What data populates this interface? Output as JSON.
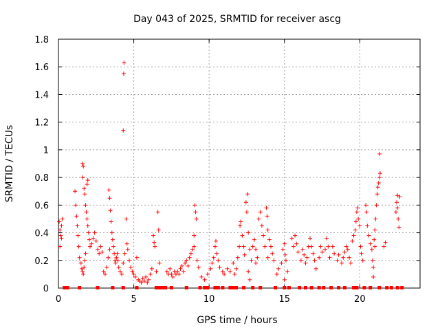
{
  "chart_data": {
    "type": "scatter",
    "title": "Day 043 of 2025, SRMTID for receiver ascg",
    "xlabel": "GPS time / hours",
    "ylabel": "SRMTID / TECUs",
    "xlim": [
      0,
      24
    ],
    "ylim": [
      0,
      1.8
    ],
    "xticks": [
      0,
      5,
      10,
      15,
      20
    ],
    "xtick_labels": [
      "0",
      "5",
      "10",
      "15",
      "20"
    ],
    "yticks": [
      0,
      0.2,
      0.4,
      0.6,
      0.8,
      1.0,
      1.2,
      1.4,
      1.6,
      1.8
    ],
    "ytick_labels": [
      "0",
      "0.2",
      "0.4",
      "0.6",
      "0.8",
      "1",
      "1.2",
      "1.4",
      "1.6",
      "1.8"
    ],
    "grid": true,
    "series": [
      {
        "name": "SRMTID",
        "marker": "plus",
        "color": "#ff0000",
        "points": [
          [
            0.05,
            0.48
          ],
          [
            0.1,
            0.42
          ],
          [
            0.15,
            0.38
          ],
          [
            0.2,
            0.45
          ],
          [
            0.25,
            0.5
          ],
          [
            0.1,
            0.3
          ],
          [
            0.2,
            0.36
          ],
          [
            1.1,
            0.7
          ],
          [
            1.15,
            0.6
          ],
          [
            1.2,
            0.52
          ],
          [
            1.25,
            0.45
          ],
          [
            1.3,
            0.38
          ],
          [
            1.35,
            0.3
          ],
          [
            1.4,
            0.22
          ],
          [
            1.5,
            0.18
          ],
          [
            1.55,
            0.14
          ],
          [
            1.6,
            0.12
          ],
          [
            1.65,
            0.1
          ],
          [
            1.7,
            0.15
          ],
          [
            1.75,
            0.2
          ],
          [
            1.8,
            0.25
          ],
          [
            1.6,
            0.9
          ],
          [
            1.65,
            0.88
          ],
          [
            1.62,
            0.8
          ],
          [
            1.7,
            0.72
          ],
          [
            1.75,
            0.68
          ],
          [
            1.8,
            0.6
          ],
          [
            1.85,
            0.55
          ],
          [
            1.9,
            0.5
          ],
          [
            1.95,
            0.45
          ],
          [
            2.0,
            0.4
          ],
          [
            2.05,
            0.35
          ],
          [
            2.1,
            0.3
          ],
          [
            1.95,
            0.78
          ],
          [
            1.9,
            0.75
          ],
          [
            2.2,
            0.32
          ],
          [
            2.3,
            0.36
          ],
          [
            2.4,
            0.4
          ],
          [
            2.5,
            0.34
          ],
          [
            2.6,
            0.28
          ],
          [
            2.7,
            0.25
          ],
          [
            2.8,
            0.3
          ],
          [
            2.9,
            0.26
          ],
          [
            3.0,
            0.12
          ],
          [
            3.1,
            0.1
          ],
          [
            3.2,
            0.15
          ],
          [
            3.3,
            0.22
          ],
          [
            3.4,
            0.28
          ],
          [
            3.35,
            0.71
          ],
          [
            3.4,
            0.65
          ],
          [
            3.45,
            0.56
          ],
          [
            3.5,
            0.48
          ],
          [
            3.55,
            0.4
          ],
          [
            3.6,
            0.35
          ],
          [
            3.65,
            0.3
          ],
          [
            3.7,
            0.25
          ],
          [
            3.75,
            0.2
          ],
          [
            3.8,
            0.18
          ],
          [
            3.85,
            0.22
          ],
          [
            3.9,
            0.25
          ],
          [
            3.95,
            0.2
          ],
          [
            4.0,
            0.15
          ],
          [
            4.1,
            0.12
          ],
          [
            4.2,
            0.1
          ],
          [
            4.3,
            0.18
          ],
          [
            4.35,
            1.63
          ],
          [
            4.33,
            1.55
          ],
          [
            4.3,
            1.14
          ],
          [
            4.4,
            0.25
          ],
          [
            4.5,
            0.5
          ],
          [
            4.55,
            0.32
          ],
          [
            4.6,
            0.28
          ],
          [
            4.7,
            0.2
          ],
          [
            4.8,
            0.15
          ],
          [
            4.9,
            0.12
          ],
          [
            5.0,
            0.1
          ],
          [
            5.1,
            0.08
          ],
          [
            5.2,
            0.22
          ],
          [
            5.3,
            0.06
          ],
          [
            5.4,
            0.05
          ],
          [
            5.5,
            0.04
          ],
          [
            5.6,
            0.07
          ],
          [
            5.7,
            0.05
          ],
          [
            5.8,
            0.08
          ],
          [
            5.9,
            0.04
          ],
          [
            6.0,
            0.06
          ],
          [
            6.1,
            0.1
          ],
          [
            6.2,
            0.14
          ],
          [
            6.3,
            0.38
          ],
          [
            6.35,
            0.33
          ],
          [
            6.4,
            0.3
          ],
          [
            6.5,
            0.12
          ],
          [
            6.6,
            0.55
          ],
          [
            6.65,
            0.42
          ],
          [
            6.7,
            0.18
          ],
          [
            7.2,
            0.12
          ],
          [
            7.3,
            0.1
          ],
          [
            7.4,
            0.14
          ],
          [
            7.5,
            0.1
          ],
          [
            7.6,
            0.08
          ],
          [
            7.7,
            0.12
          ],
          [
            7.8,
            0.1
          ],
          [
            7.9,
            0.12
          ],
          [
            8.0,
            0.1
          ],
          [
            8.1,
            0.14
          ],
          [
            8.2,
            0.16
          ],
          [
            8.3,
            0.12
          ],
          [
            8.4,
            0.18
          ],
          [
            8.5,
            0.2
          ],
          [
            8.6,
            0.16
          ],
          [
            8.7,
            0.22
          ],
          [
            8.8,
            0.25
          ],
          [
            8.9,
            0.28
          ],
          [
            9.0,
            0.3
          ],
          [
            9.05,
            0.6
          ],
          [
            9.1,
            0.55
          ],
          [
            9.15,
            0.5
          ],
          [
            9.0,
            0.38
          ],
          [
            9.2,
            0.2
          ],
          [
            9.3,
            0.15
          ],
          [
            9.5,
            0.08
          ],
          [
            9.7,
            0.06
          ],
          [
            9.9,
            0.1
          ],
          [
            10.1,
            0.14
          ],
          [
            10.2,
            0.18
          ],
          [
            10.3,
            0.22
          ],
          [
            10.4,
            0.3
          ],
          [
            10.45,
            0.34
          ],
          [
            10.5,
            0.25
          ],
          [
            10.6,
            0.2
          ],
          [
            10.7,
            0.15
          ],
          [
            10.9,
            0.12
          ],
          [
            11.0,
            0.1
          ],
          [
            11.2,
            0.14
          ],
          [
            11.4,
            0.12
          ],
          [
            11.6,
            0.18
          ],
          [
            11.7,
            0.1
          ],
          [
            11.8,
            0.14
          ],
          [
            11.9,
            0.22
          ],
          [
            12.0,
            0.3
          ],
          [
            12.05,
            0.45
          ],
          [
            12.1,
            0.48
          ],
          [
            12.2,
            0.38
          ],
          [
            12.3,
            0.3
          ],
          [
            12.35,
            0.24
          ],
          [
            12.45,
            0.62
          ],
          [
            12.5,
            0.55
          ],
          [
            12.55,
            0.68
          ],
          [
            12.6,
            0.4
          ],
          [
            12.7,
            0.28
          ],
          [
            12.8,
            0.2
          ],
          [
            12.9,
            0.3
          ],
          [
            13.0,
            0.35
          ],
          [
            13.1,
            0.28
          ],
          [
            13.2,
            0.22
          ],
          [
            13.3,
            0.5
          ],
          [
            13.4,
            0.55
          ],
          [
            13.5,
            0.45
          ],
          [
            13.6,
            0.38
          ],
          [
            13.7,
            0.3
          ],
          [
            13.8,
            0.58
          ],
          [
            13.85,
            0.52
          ],
          [
            13.9,
            0.42
          ],
          [
            14.0,
            0.35
          ],
          [
            14.1,
            0.3
          ],
          [
            14.2,
            0.25
          ],
          [
            13.9,
            0.22
          ],
          [
            12.6,
            0.12
          ],
          [
            12.7,
            0.06
          ],
          [
            13.1,
            0.18
          ],
          [
            14.3,
            0.2
          ],
          [
            14.5,
            0.1
          ],
          [
            14.6,
            0.14
          ],
          [
            14.8,
            0.18
          ],
          [
            14.9,
            0.28
          ],
          [
            15.0,
            0.32
          ],
          [
            15.05,
            0.24
          ],
          [
            15.1,
            0.2
          ],
          [
            15.2,
            0.12
          ],
          [
            15.0,
            0.06
          ],
          [
            15.5,
            0.36
          ],
          [
            15.6,
            0.3
          ],
          [
            15.7,
            0.38
          ],
          [
            15.8,
            0.32
          ],
          [
            15.9,
            0.26
          ],
          [
            16.1,
            0.2
          ],
          [
            16.2,
            0.28
          ],
          [
            16.3,
            0.24
          ],
          [
            16.4,
            0.18
          ],
          [
            16.5,
            0.22
          ],
          [
            16.6,
            0.3
          ],
          [
            16.7,
            0.36
          ],
          [
            16.8,
            0.3
          ],
          [
            16.9,
            0.25
          ],
          [
            17.0,
            0.2
          ],
          [
            17.1,
            0.14
          ],
          [
            17.3,
            0.22
          ],
          [
            17.4,
            0.3
          ],
          [
            17.5,
            0.26
          ],
          [
            17.7,
            0.28
          ],
          [
            17.8,
            0.36
          ],
          [
            17.9,
            0.3
          ],
          [
            18.0,
            0.22
          ],
          [
            18.2,
            0.3
          ],
          [
            18.3,
            0.25
          ],
          [
            18.5,
            0.2
          ],
          [
            18.6,
            0.24
          ],
          [
            18.8,
            0.18
          ],
          [
            18.9,
            0.22
          ],
          [
            19.0,
            0.26
          ],
          [
            19.1,
            0.3
          ],
          [
            19.2,
            0.28
          ],
          [
            19.3,
            0.22
          ],
          [
            19.4,
            0.18
          ],
          [
            19.5,
            0.34
          ],
          [
            19.6,
            0.38
          ],
          [
            19.7,
            0.42
          ],
          [
            19.75,
            0.48
          ],
          [
            19.8,
            0.55
          ],
          [
            19.85,
            0.58
          ],
          [
            19.9,
            0.5
          ],
          [
            20.0,
            0.45
          ],
          [
            20.05,
            0.3
          ],
          [
            20.1,
            0.25
          ],
          [
            20.2,
            0.2
          ],
          [
            20.4,
            0.6
          ],
          [
            20.45,
            0.55
          ],
          [
            20.5,
            0.45
          ],
          [
            20.6,
            0.38
          ],
          [
            20.7,
            0.32
          ],
          [
            20.8,
            0.28
          ],
          [
            20.85,
            0.2
          ],
          [
            20.9,
            0.15
          ],
          [
            20.95,
            0.35
          ],
          [
            21.0,
            0.42
          ],
          [
            21.05,
            0.5
          ],
          [
            21.1,
            0.6
          ],
          [
            21.15,
            0.68
          ],
          [
            21.2,
            0.73
          ],
          [
            21.25,
            0.76
          ],
          [
            21.3,
            0.8
          ],
          [
            21.35,
            0.83
          ],
          [
            21.32,
            0.97
          ],
          [
            21.0,
            0.3
          ],
          [
            20.9,
            0.08
          ],
          [
            21.6,
            0.3
          ],
          [
            21.7,
            0.33
          ],
          [
            22.4,
            0.55
          ],
          [
            22.45,
            0.62
          ],
          [
            22.5,
            0.58
          ],
          [
            22.55,
            0.5
          ],
          [
            22.6,
            0.44
          ],
          [
            22.65,
            0.66
          ],
          [
            22.5,
            0.67
          ]
        ]
      }
    ],
    "zero_markers_x": [
      0.4,
      0.5,
      0.6,
      1.4,
      2.6,
      3.6,
      4.3,
      5.2,
      6.5,
      6.7,
      6.9,
      7.1,
      7.5,
      8.5,
      9.4,
      9.7,
      9.9,
      10.4,
      10.6,
      10.9,
      11.4,
      11.6,
      11.8,
      12.3,
      12.9,
      13.4,
      14.4,
      15.0,
      15.3,
      16.0,
      16.4,
      16.8,
      17.3,
      17.6,
      18.1,
      18.6,
      19.0,
      19.6,
      19.8,
      20.3,
      20.7,
      21.3,
      21.8,
      22.1,
      22.5,
      22.8
    ]
  }
}
